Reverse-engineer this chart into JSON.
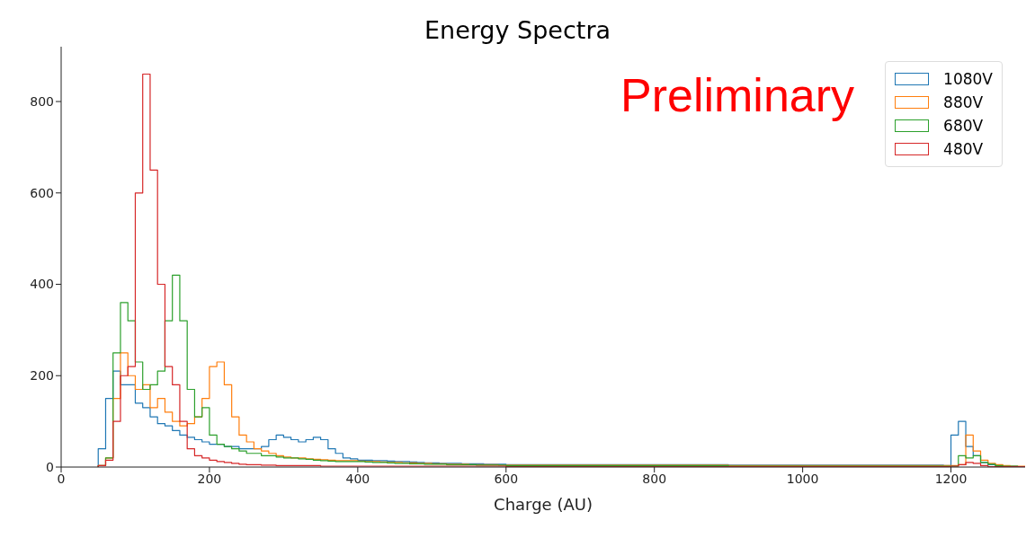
{
  "chart_data": {
    "type": "histogram",
    "title": "Energy Spectra",
    "xlabel": "Charge (AU)",
    "bins": [
      50,
      60,
      70,
      80,
      90,
      100,
      110,
      120,
      130,
      140,
      150,
      160,
      170,
      180,
      190,
      200,
      210,
      220,
      230,
      240,
      250,
      260,
      270,
      280,
      290,
      300,
      310,
      320,
      330,
      340,
      350,
      360,
      370,
      380,
      390,
      400,
      410,
      420,
      430,
      440,
      450,
      460,
      470,
      480,
      490,
      500,
      510,
      520,
      530,
      540,
      550,
      560,
      570,
      580,
      590,
      600,
      610,
      620,
      630,
      640,
      650,
      660,
      670,
      680,
      690,
      700,
      710,
      720,
      730,
      740,
      750,
      760,
      770,
      780,
      790,
      800,
      810,
      820,
      830,
      840,
      850,
      860,
      870,
      880,
      890,
      900,
      910,
      920,
      930,
      940,
      950,
      960,
      970,
      980,
      990,
      1000,
      1010,
      1020,
      1030,
      1040,
      1050,
      1060,
      1070,
      1080,
      1090,
      1100,
      1110,
      1120,
      1130,
      1140,
      1150,
      1160,
      1170,
      1180,
      1190,
      1200,
      1210,
      1220,
      1230,
      1240,
      1250,
      1260,
      1270,
      1280,
      1290,
      1300
    ],
    "series": [
      {
        "name": "1080V",
        "color": "#1f77b4",
        "values": [
          40,
          150,
          210,
          180,
          180,
          140,
          130,
          110,
          95,
          90,
          80,
          70,
          65,
          60,
          55,
          50,
          50,
          45,
          45,
          40,
          40,
          40,
          45,
          60,
          70,
          65,
          60,
          55,
          60,
          65,
          60,
          40,
          30,
          20,
          18,
          15,
          15,
          14,
          14,
          13,
          12,
          12,
          11,
          10,
          9,
          9,
          8,
          8,
          8,
          7,
          7,
          7,
          6,
          6,
          6,
          5,
          5,
          5,
          5,
          5,
          5,
          5,
          5,
          5,
          5,
          5,
          5,
          5,
          5,
          5,
          5,
          5,
          5,
          5,
          5,
          5,
          5,
          5,
          5,
          5,
          5,
          5,
          5,
          5,
          5,
          4,
          4,
          4,
          4,
          4,
          4,
          4,
          4,
          4,
          4,
          4,
          4,
          4,
          4,
          4,
          4,
          4,
          4,
          4,
          4,
          4,
          4,
          4,
          4,
          4,
          4,
          4,
          4,
          4,
          3,
          70,
          100,
          45,
          25,
          10,
          5,
          3,
          2,
          2,
          1
        ]
      },
      {
        "name": "880V",
        "color": "#ff7f0e",
        "values": [
          3,
          20,
          150,
          250,
          200,
          170,
          180,
          130,
          150,
          120,
          100,
          90,
          95,
          110,
          150,
          220,
          230,
          180,
          110,
          70,
          55,
          40,
          35,
          30,
          25,
          22,
          20,
          20,
          18,
          17,
          16,
          15,
          14,
          14,
          14,
          13,
          12,
          12,
          11,
          10,
          10,
          9,
          9,
          8,
          8,
          7,
          7,
          6,
          6,
          6,
          5,
          5,
          5,
          5,
          4,
          4,
          4,
          4,
          4,
          4,
          4,
          4,
          4,
          4,
          4,
          4,
          4,
          4,
          4,
          4,
          4,
          4,
          4,
          4,
          4,
          4,
          4,
          4,
          4,
          4,
          4,
          4,
          4,
          4,
          4,
          3,
          3,
          3,
          3,
          3,
          3,
          3,
          3,
          3,
          3,
          3,
          3,
          3,
          3,
          3,
          3,
          3,
          3,
          3,
          3,
          3,
          3,
          3,
          3,
          3,
          3,
          3,
          3,
          3,
          3,
          3,
          5,
          70,
          35,
          15,
          8,
          5,
          3,
          2,
          2
        ]
      },
      {
        "name": "680V",
        "color": "#2ca02c",
        "values": [
          3,
          20,
          250,
          360,
          320,
          230,
          170,
          180,
          210,
          320,
          420,
          320,
          170,
          110,
          130,
          70,
          50,
          45,
          40,
          35,
          30,
          30,
          25,
          25,
          22,
          20,
          20,
          18,
          17,
          15,
          14,
          13,
          12,
          12,
          12,
          12,
          11,
          10,
          10,
          9,
          8,
          8,
          7,
          7,
          6,
          6,
          6,
          5,
          5,
          5,
          5,
          4,
          4,
          4,
          4,
          3,
          3,
          3,
          3,
          3,
          3,
          3,
          3,
          3,
          3,
          3,
          3,
          3,
          3,
          3,
          3,
          3,
          3,
          3,
          3,
          3,
          3,
          3,
          3,
          3,
          3,
          3,
          3,
          3,
          3,
          2,
          2,
          2,
          2,
          2,
          2,
          2,
          2,
          2,
          2,
          2,
          2,
          2,
          2,
          2,
          2,
          2,
          2,
          2,
          2,
          2,
          2,
          2,
          2,
          2,
          2,
          2,
          2,
          2,
          2,
          2,
          25,
          20,
          25,
          10,
          6,
          3,
          2,
          2,
          1
        ]
      },
      {
        "name": "480V",
        "color": "#d62728",
        "values": [
          3,
          15,
          100,
          200,
          220,
          600,
          860,
          650,
          400,
          220,
          180,
          100,
          40,
          25,
          20,
          15,
          12,
          10,
          8,
          6,
          5,
          5,
          4,
          4,
          3,
          3,
          3,
          3,
          3,
          3,
          2,
          2,
          2,
          2,
          2,
          2,
          2,
          2,
          2,
          2,
          2,
          2,
          2,
          2,
          2,
          2,
          2,
          2,
          2,
          2,
          2,
          2,
          2,
          2,
          2,
          1,
          1,
          1,
          1,
          1,
          1,
          1,
          1,
          1,
          1,
          1,
          1,
          1,
          1,
          1,
          1,
          1,
          1,
          1,
          1,
          1,
          1,
          1,
          1,
          1,
          1,
          1,
          1,
          1,
          1,
          1,
          1,
          1,
          1,
          1,
          1,
          1,
          1,
          1,
          1,
          1,
          1,
          1,
          1,
          1,
          1,
          1,
          1,
          1,
          1,
          1,
          1,
          1,
          1,
          1,
          1,
          1,
          1,
          1,
          1,
          2,
          5,
          10,
          8,
          3,
          1,
          1,
          1,
          1,
          1
        ]
      }
    ],
    "xlim": [
      0,
      1300
    ],
    "ylim": [
      0,
      920
    ],
    "xticks": [
      0,
      200,
      400,
      600,
      800,
      1000,
      1200
    ],
    "yticks": [
      0,
      200,
      400,
      600,
      800
    ],
    "legend": "top right",
    "annotations": [
      "Preliminary"
    ]
  }
}
